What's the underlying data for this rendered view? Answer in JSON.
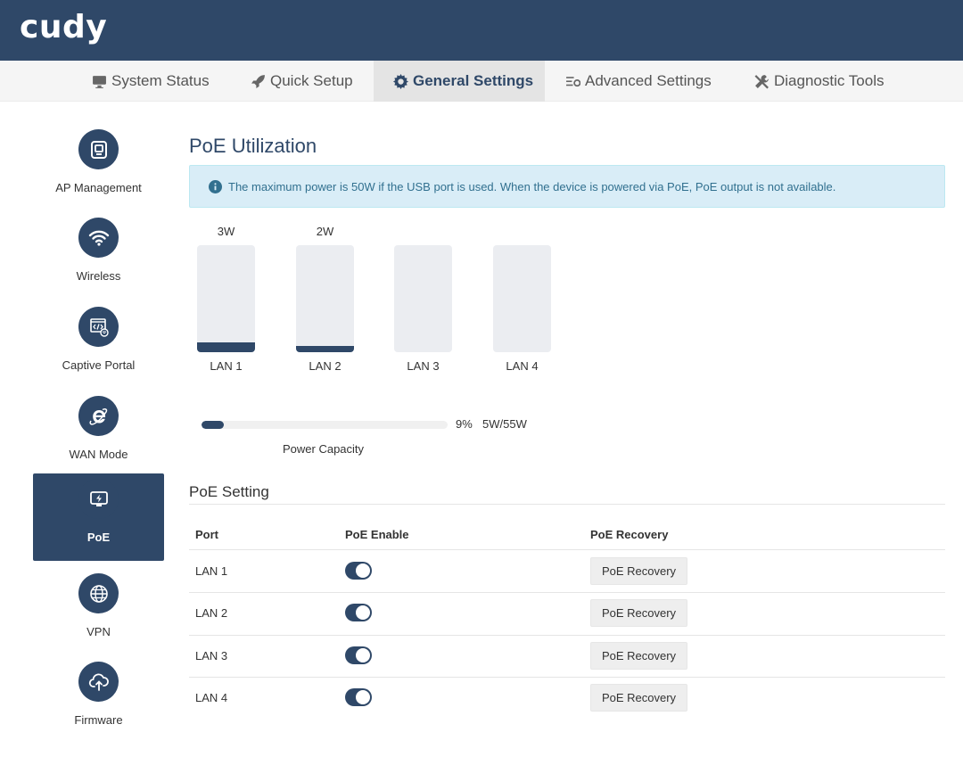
{
  "header": {
    "logo": "cudy"
  },
  "nav": {
    "tabs": [
      {
        "label": "System Status",
        "icon": "monitor-icon"
      },
      {
        "label": "Quick Setup",
        "icon": "rocket-icon"
      },
      {
        "label": "General Settings",
        "icon": "gear-icon",
        "active": true
      },
      {
        "label": "Advanced Settings",
        "icon": "sliders-gear-icon"
      },
      {
        "label": "Diagnostic Tools",
        "icon": "wrench-screwdriver-icon"
      }
    ]
  },
  "sidebar": {
    "items": [
      {
        "label": "AP Management",
        "icon": "access-point-icon"
      },
      {
        "label": "Wireless",
        "icon": "wifi-icon"
      },
      {
        "label": "Captive Portal",
        "icon": "captive-portal-icon"
      },
      {
        "label": "WAN Mode",
        "icon": "internet-explorer-icon"
      },
      {
        "label": "PoE",
        "icon": "poe-icon",
        "active": true
      },
      {
        "label": "VPN",
        "icon": "globe-icon"
      },
      {
        "label": "Firmware",
        "icon": "cloud-upload-icon"
      }
    ]
  },
  "main": {
    "title": "PoE Utilization",
    "info": "The maximum power is 50W if the USB port is used. When the device is powered via PoE, PoE output is not available.",
    "ports": [
      {
        "label": "LAN 1",
        "value": "3W",
        "fill": 0.09
      },
      {
        "label": "LAN 2",
        "value": "2W",
        "fill": 0.06
      },
      {
        "label": "LAN 3",
        "value": "",
        "fill": 0
      },
      {
        "label": "LAN 4",
        "value": "",
        "fill": 0
      }
    ],
    "capacity": {
      "percent": "9%",
      "usage": "5W/55W",
      "label": "Power Capacity",
      "fraction": 0.09
    }
  },
  "poe_setting": {
    "title": "PoE Setting",
    "columns": {
      "port": "Port",
      "enable": "PoE Enable",
      "recovery": "PoE Recovery"
    },
    "rows": [
      {
        "port": "LAN 1",
        "enabled": true,
        "button": "PoE Recovery"
      },
      {
        "port": "LAN 2",
        "enabled": true,
        "button": "PoE Recovery"
      },
      {
        "port": "LAN 3",
        "enabled": true,
        "button": "PoE Recovery"
      },
      {
        "port": "LAN 4",
        "enabled": true,
        "button": "PoE Recovery"
      }
    ]
  },
  "colors": {
    "primary": "#2f4868",
    "info_bg": "#d9edf7",
    "info_text": "#31708f",
    "track": "#ebedf1"
  }
}
